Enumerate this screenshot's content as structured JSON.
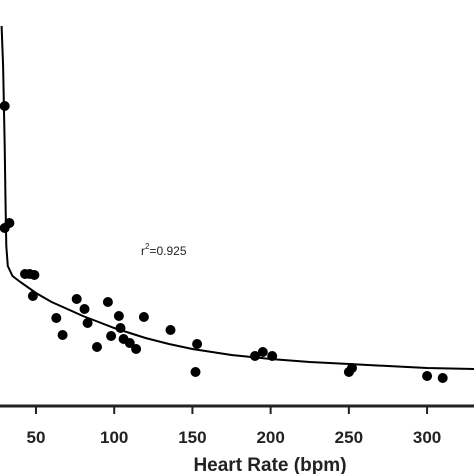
{
  "chart_data": {
    "type": "scatter",
    "xlabel": "Heart Rate (bpm)",
    "ylabel": "",
    "xlim": [
      27,
      330
    ],
    "ylim": [
      0,
      380
    ],
    "xticks": [
      50,
      100,
      150,
      200,
      250,
      300
    ],
    "grid": false,
    "legend": "none",
    "annotation": {
      "base": "r",
      "superscript": "2",
      "rest": "=0.925"
    },
    "series": [
      {
        "points": [
          [
            30,
            300
          ],
          [
            30,
            178
          ],
          [
            33,
            183
          ],
          [
            43,
            132
          ],
          [
            46,
            132
          ],
          [
            49,
            131
          ],
          [
            48,
            110
          ],
          [
            63,
            88
          ],
          [
            67,
            71
          ],
          [
            76,
            107
          ],
          [
            81,
            97
          ],
          [
            83,
            83
          ],
          [
            89,
            59
          ],
          [
            96,
            104
          ],
          [
            98,
            70
          ],
          [
            103,
            90
          ],
          [
            104,
            78
          ],
          [
            106,
            67
          ],
          [
            110,
            63
          ],
          [
            114,
            57
          ],
          [
            119,
            89
          ],
          [
            136,
            76
          ],
          [
            152,
            34
          ],
          [
            153,
            62
          ],
          [
            190,
            50
          ],
          [
            195,
            54
          ],
          [
            201,
            50
          ],
          [
            250,
            34
          ],
          [
            252,
            38
          ],
          [
            300,
            30
          ],
          [
            310,
            28
          ]
        ]
      }
    ],
    "fit_curve": [
      [
        28,
        380
      ],
      [
        29,
        340
      ],
      [
        30,
        260
      ],
      [
        30.5,
        205
      ],
      [
        31,
        160
      ],
      [
        32,
        140
      ],
      [
        35,
        130
      ],
      [
        40,
        124
      ],
      [
        50,
        113
      ],
      [
        60,
        104
      ],
      [
        70,
        97
      ],
      [
        80,
        90
      ],
      [
        90,
        84
      ],
      [
        100,
        78
      ],
      [
        110,
        73
      ],
      [
        120,
        68
      ],
      [
        135,
        62
      ],
      [
        150,
        57
      ],
      [
        175,
        51
      ],
      [
        200,
        47
      ],
      [
        225,
        44
      ],
      [
        250,
        42
      ],
      [
        275,
        40
      ],
      [
        300,
        38
      ],
      [
        330,
        37
      ]
    ],
    "colors": {
      "points": "#000000",
      "curve": "#000000",
      "axis": "#222222"
    }
  }
}
